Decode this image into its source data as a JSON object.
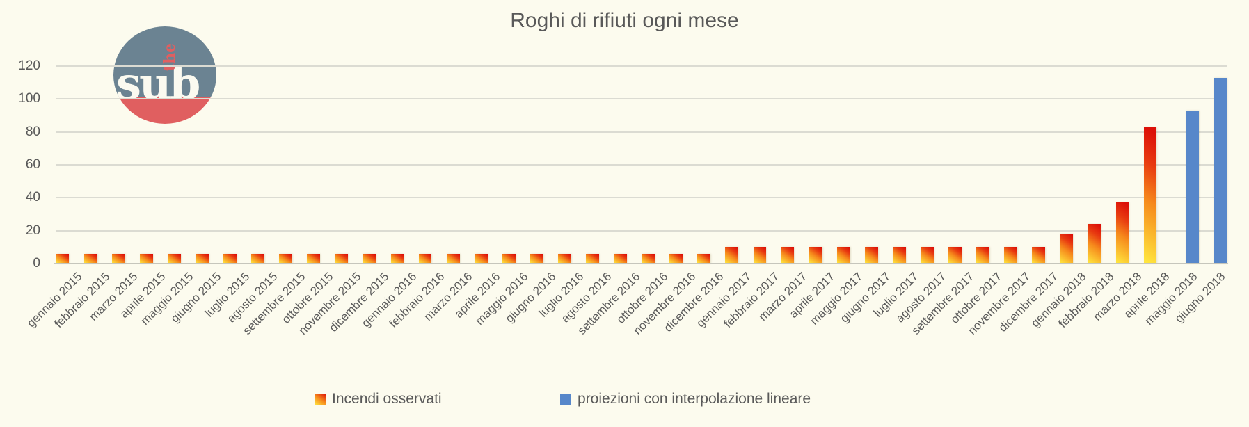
{
  "chart_data": {
    "type": "bar",
    "title": "Roghi di rifiuti ogni mese",
    "categories": [
      "gennaio 2015",
      "febbraio 2015",
      "marzo 2015",
      "aprile 2015",
      "maggio 2015",
      "giugno 2015",
      "luglio 2015",
      "agosto 2015",
      "settembre 2015",
      "ottobre 2015",
      "novembre 2015",
      "dicembre 2015",
      "gennaio 2016",
      "febbraio 2016",
      "marzo 2016",
      "aprile 2016",
      "maggio 2016",
      "giugno 2016",
      "luglio 2016",
      "agosto 2016",
      "settembre 2016",
      "ottobre 2016",
      "novembre 2016",
      "dicembre 2016",
      "gennaio 2017",
      "febbraio 2017",
      "marzo 2017",
      "aprile 2017",
      "maggio 2017",
      "giugno 2017",
      "luglio 2017",
      "agosto 2017",
      "settembre 2017",
      "ottobre 2017",
      "novembre 2017",
      "dicembre 2017",
      "gennaio 2018",
      "febbraio 2018",
      "marzo 2018",
      "aprile 2018",
      "maggio 2018",
      "giugno 2018"
    ],
    "series": [
      {
        "name": "Incendi osservati",
        "style": "gradient",
        "gradient_colors": [
          "#DC1008",
          "#F68A1C",
          "#FFE63E"
        ],
        "values": [
          6,
          6,
          6,
          6,
          6,
          6,
          6,
          6,
          6,
          6,
          6,
          6,
          6,
          6,
          6,
          6,
          6,
          6,
          6,
          6,
          6,
          6,
          6,
          6,
          10,
          10,
          10,
          10,
          10,
          10,
          10,
          10,
          10,
          10,
          10,
          10,
          18,
          24,
          37,
          83,
          null,
          null
        ]
      },
      {
        "name": "proiezioni con interpolazione lineare",
        "style": "solid",
        "color": "#5787CA",
        "values": [
          null,
          null,
          null,
          null,
          null,
          null,
          null,
          null,
          null,
          null,
          null,
          null,
          null,
          null,
          null,
          null,
          null,
          null,
          null,
          null,
          null,
          null,
          null,
          null,
          null,
          null,
          null,
          null,
          null,
          null,
          null,
          null,
          null,
          null,
          null,
          null,
          null,
          null,
          null,
          null,
          93,
          113
        ]
      }
    ],
    "yticks": [
      0,
      20,
      40,
      60,
      80,
      100,
      120
    ],
    "ylim": [
      0,
      120
    ],
    "grid": true,
    "legend_position": "bottom",
    "x_label_rotation": 45
  },
  "logo": {
    "text_vertical": "the",
    "text_main": "sub",
    "slate_color": "#6B8392",
    "coral_color": "#E05F60"
  },
  "colors": {
    "background": "#FCFBEE",
    "gridline": "#DBDBD2",
    "axis_line": "#C6C6BC",
    "text": "#595959"
  }
}
